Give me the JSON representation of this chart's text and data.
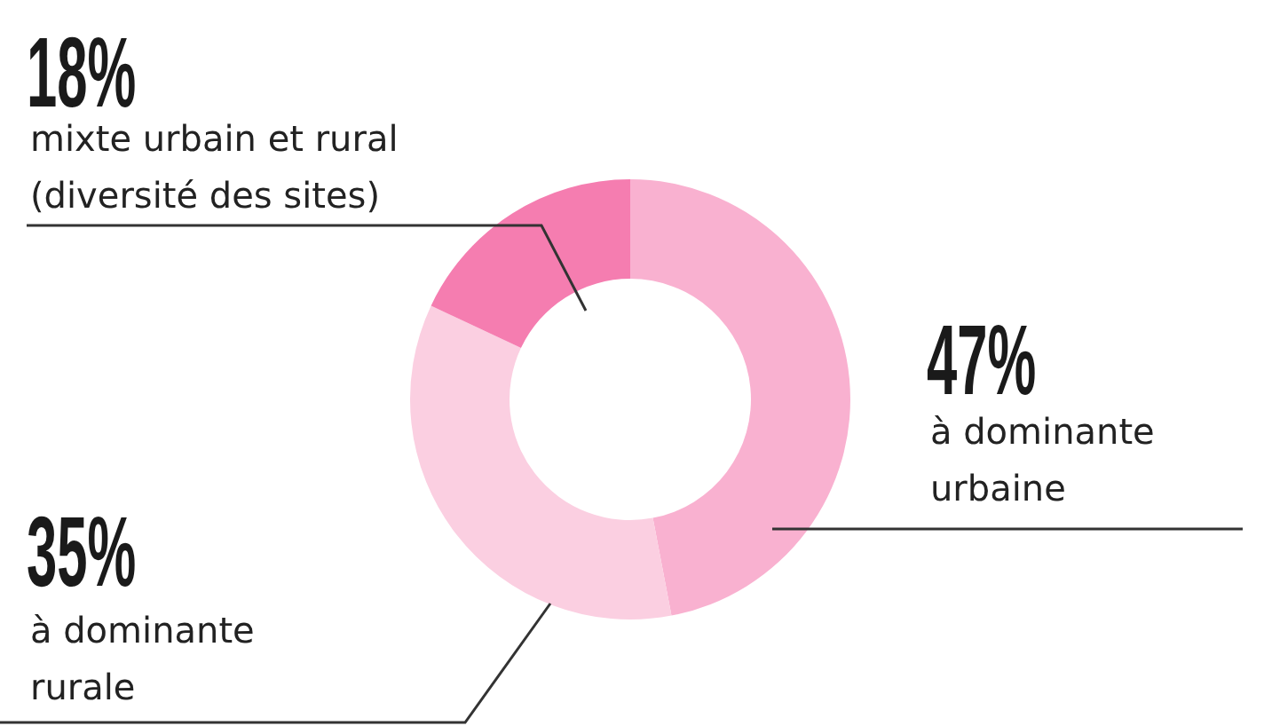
{
  "chart_data": {
    "type": "donut",
    "categories": [
      "à dominante urbaine",
      "à dominante rurale",
      "mixte urbain et rural (diversité des sites)"
    ],
    "values": [
      47,
      35,
      18
    ],
    "colors": [
      "#f9b1d0",
      "#fbcfe1",
      "#f57db0"
    ],
    "value_labels": [
      "47%",
      "35%",
      "18%"
    ],
    "legend": false
  }
}
